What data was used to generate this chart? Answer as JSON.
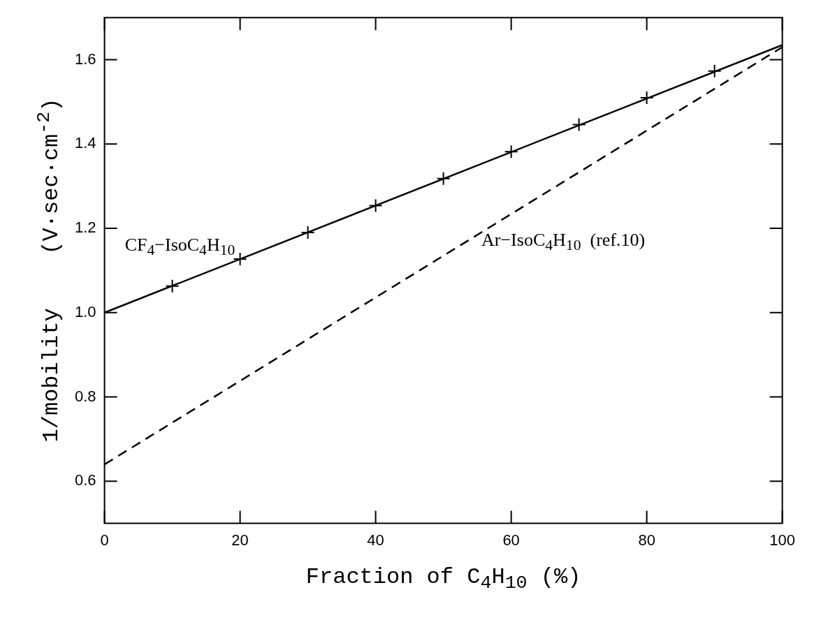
{
  "chart_data": {
    "type": "line",
    "xlabel": "Fraction of C$_{4}$H$_{10}$ (%)",
    "ylabel": "1/mobility    (V·sec·cm$^{-2}$)",
    "xlim": [
      0,
      100
    ],
    "xticks": [
      0,
      20,
      40,
      60,
      80,
      100
    ],
    "ylim": [
      0.5,
      1.7
    ],
    "yticks": [
      0.6,
      0.8,
      {
        "value": 1,
        "label": "1.0"
      },
      1.2,
      1.4,
      1.6
    ],
    "series": [
      {
        "name": "CF$_{4}$−IsoC$_{4}$H$_{10}$",
        "type": "line",
        "color": "#000000",
        "x": [
          0,
          100
        ],
        "values": [
          1.0,
          1.635
        ],
        "line_style": "solid",
        "marker": "none"
      },
      {
        "type": "scatter",
        "color": "#000000",
        "x": [
          10,
          20,
          30,
          40,
          50,
          60,
          70,
          80,
          90
        ],
        "values": [
          1.063,
          1.127,
          1.19,
          1.254,
          1.318,
          1.382,
          1.446,
          1.51,
          1.573
        ],
        "marker": "cross"
      },
      {
        "name": "Ar−IsoC$_{4}$H$_{10}$  (ref.10)",
        "type": "line",
        "color": "#000000",
        "x": [
          0,
          100
        ],
        "values": [
          0.64,
          1.63
        ],
        "line_style": "dashed",
        "marker": "none"
      }
    ]
  }
}
